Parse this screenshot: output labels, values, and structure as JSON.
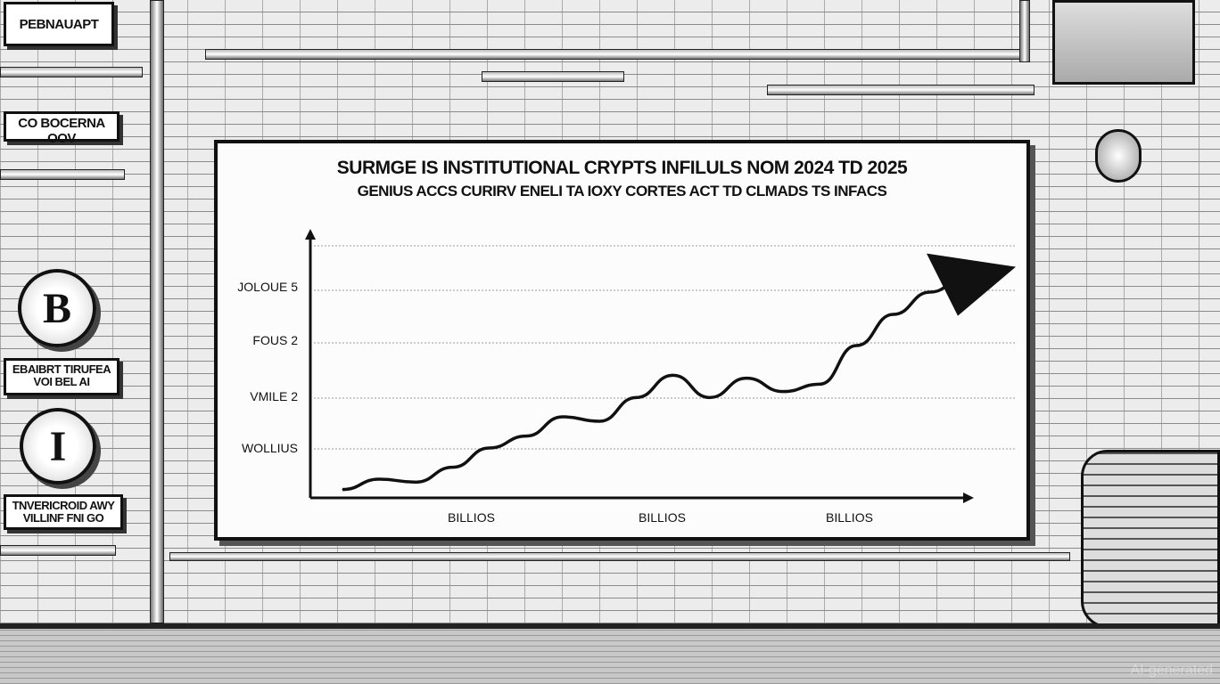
{
  "wall_signs": [
    {
      "text": "PEBNAUAPT"
    },
    {
      "text": "CO BOCERNA OOV"
    },
    {
      "text": "EBAIBRT TIRUFEA VOI BEL AI"
    },
    {
      "text": "TNVERICROID AWY VILLINF FNI GO"
    }
  ],
  "coins": [
    {
      "icon": "bitcoin-icon",
      "glyph": "B"
    },
    {
      "icon": "coin-icon",
      "glyph": "I"
    }
  ],
  "chart_data": {
    "type": "line",
    "title": "SURMGE IS INSTITUTIONAL CRYPTS INFILULS NOM 2024 TD 2025",
    "subtitle": "GENIUS ACCS CURIRV ENELI TA IOXY CORTES ACT TD CLMADS TS INFACS",
    "ytick_labels": [
      "WOLLIUS",
      "VMILE 2",
      "FOUS 2",
      "JOLOUE 5"
    ],
    "xtick_labels": [
      "BILLIOS",
      "BILLIOS",
      "BILLIOS"
    ],
    "grid": true,
    "trend": "rising, ending in an upward arrow",
    "series": [
      {
        "values": [
          2,
          9,
          7,
          17,
          30,
          38,
          51,
          48,
          64,
          79,
          64,
          77,
          68,
          73,
          99,
          120,
          135,
          146
        ]
      }
    ]
  },
  "watermark": "AI-generated",
  "colors": {
    "ink": "#111111",
    "paper": "#fcfcfc",
    "wall": "#ececec"
  }
}
